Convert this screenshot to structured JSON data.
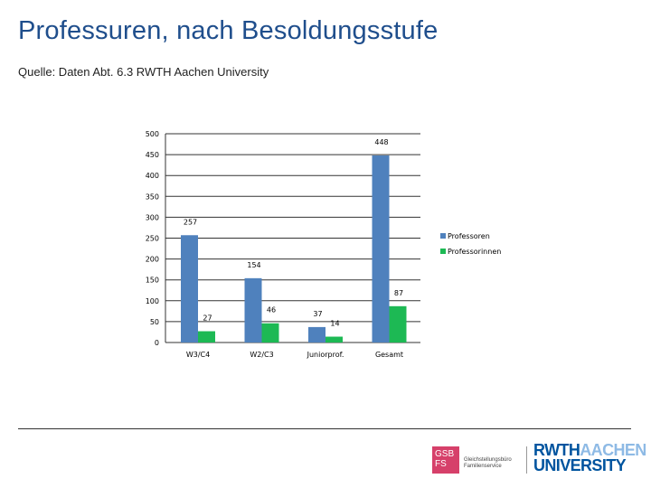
{
  "page": {
    "title": "Professuren, nach Besoldungsstufe",
    "source": "Quelle: Daten Abt. 6.3 RWTH Aachen University"
  },
  "chart_data": {
    "type": "bar",
    "title": "",
    "xlabel": "",
    "ylabel": "",
    "categories": [
      "W3/C4",
      "W2/C3",
      "Juniorprof.",
      "Gesamt"
    ],
    "series": [
      {
        "name": "Professoren",
        "values": [
          257,
          154,
          37,
          448
        ],
        "color": "#4f81bd"
      },
      {
        "name": "Professorinnen",
        "values": [
          27,
          46,
          14,
          87
        ],
        "color": "#1db954"
      }
    ],
    "ylim": [
      0,
      500
    ],
    "yticks": [
      0,
      50,
      100,
      150,
      200,
      250,
      300,
      350,
      400,
      450,
      500
    ],
    "grid": true,
    "legend": "right"
  },
  "logos": {
    "gsb": {
      "abbr_top": "GSB",
      "abbr_bottom": "FS",
      "line1": "Gleichstellungsbüro",
      "line2": "Familienservice",
      "color": "#d6406a"
    },
    "rwth": {
      "part1": "RWTH",
      "part2": "AACHEN",
      "line2": "UNIVERSITY",
      "color": "#00549f"
    }
  }
}
